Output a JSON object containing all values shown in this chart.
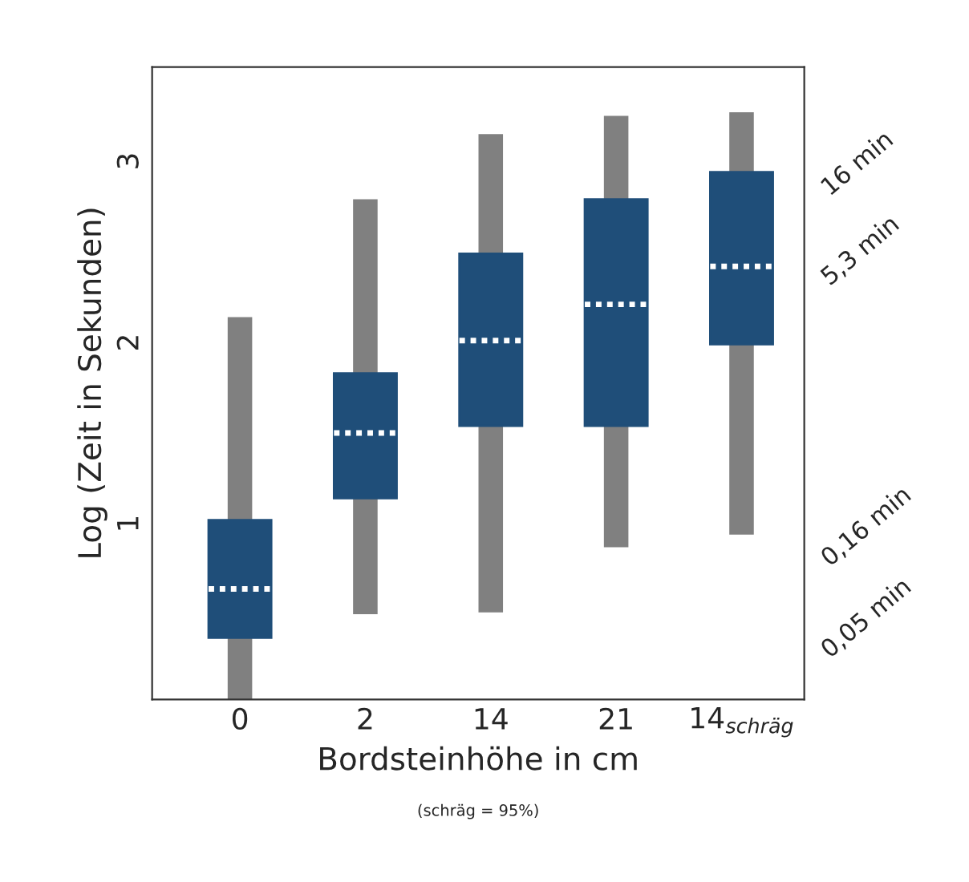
{
  "chart_data": {
    "type": "box",
    "xlabel": "Bordsteinhöhe in cm",
    "ylabel": "Log (Zeit in Sekunden)",
    "categories": [
      "0",
      "2",
      "14",
      "21",
      "14$_{schräg}$"
    ],
    "series": [
      {
        "color": "#1f4e79",
        "boxes": [
          {
            "low": 0.03,
            "q1": 0.37,
            "median": 0.64,
            "q3": 1.02,
            "high": 2.14
          },
          {
            "low": 0.5,
            "q1": 1.14,
            "median": 1.5,
            "q3": 1.83,
            "high": 2.79
          },
          {
            "low": 0.51,
            "q1": 1.54,
            "median": 2.01,
            "q3": 2.49,
            "high": 3.15
          },
          {
            "low": 0.87,
            "q1": 1.54,
            "median": 2.21,
            "q3": 2.79,
            "high": 3.25
          },
          {
            "low": 0.94,
            "q1": 1.99,
            "median": 2.42,
            "q3": 2.94,
            "high": 3.27
          }
        ]
      }
    ],
    "ylim": [
      0.03,
      3.52
    ],
    "yticks": [
      1,
      2,
      3
    ],
    "y2lim": [
      0.018,
      55
    ],
    "log": "y2",
    "y2ticks": [
      {
        "value": 0.05,
        "label": "0,05 min"
      },
      {
        "value": 0.16,
        "label": "0,16 min"
      },
      {
        "value": 5.3,
        "label": "5,3 min"
      },
      {
        "value": 16,
        "label": "16 min"
      }
    ],
    "annotations": [
      "(schräg = 95%)"
    ],
    "grid": false,
    "legend": false
  }
}
